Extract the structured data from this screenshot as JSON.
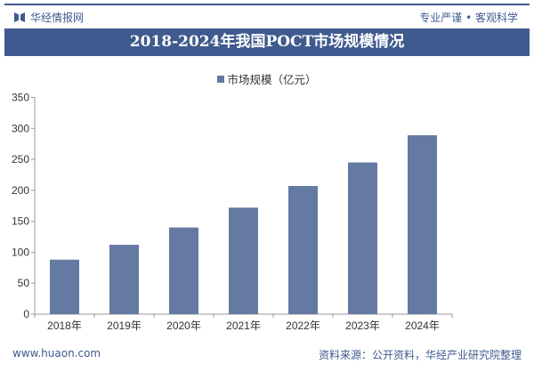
{
  "header": {
    "brand": "华经情报网",
    "slogan": "专业严谨 • 客观科学"
  },
  "footer": {
    "url": "www.huaon.com",
    "source": "资料来源：公开资料，华经产业研究院整理"
  },
  "colors": {
    "bar": "#657aa3",
    "title_bg": "#3f5a8e"
  },
  "chart_data": {
    "type": "bar",
    "title": "2018-2024年我国POCT市场规模情况",
    "categories": [
      "2018年",
      "2019年",
      "2020年",
      "2021年",
      "2022年",
      "2023年",
      "2024年"
    ],
    "series": [
      {
        "name": "市场规模（亿元）",
        "values": [
          88,
          112,
          140,
          172,
          207,
          245,
          289
        ]
      }
    ],
    "ylim": [
      0,
      350
    ],
    "yticks": [
      0,
      50,
      100,
      150,
      200,
      250,
      300,
      350
    ],
    "grid": false,
    "legend": "top-center"
  }
}
